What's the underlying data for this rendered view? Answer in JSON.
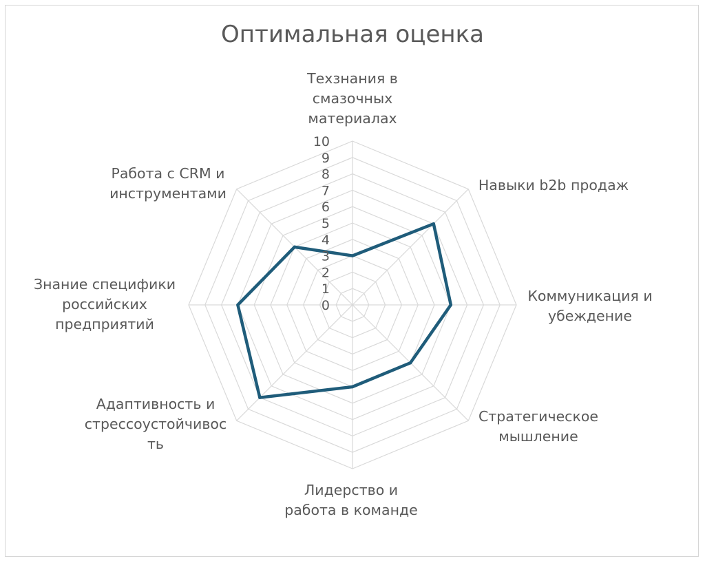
{
  "chart_data": {
    "type": "radar",
    "title": "Оптимальная оценка",
    "categories": [
      "Техзнания в смазочных материалах",
      "Навыки b2b продаж",
      "Коммуникация и убеждение",
      "Стратегическое мышление",
      "Лидерство и работа в команде",
      "Адаптивность и стрессоустойчивость",
      "Знание специфики российских предприятий",
      "Работа с CRM и инструментами"
    ],
    "category_label_lines": [
      [
        "Техзнания в",
        "смазочных",
        "материалах"
      ],
      [
        "Навыки b2b продаж"
      ],
      [
        "Коммуникация и",
        "убеждение"
      ],
      [
        "Стратегическое",
        "мышление"
      ],
      [
        "Лидерство и",
        "работа в команде"
      ],
      [
        "Адаптивность и",
        "стрессоустойчивос",
        "ть"
      ],
      [
        "Знание специфики",
        "российских",
        "предприятий"
      ],
      [
        "Работа с CRM и",
        "инструментами"
      ]
    ],
    "series": [
      {
        "values": [
          3,
          7,
          6,
          5,
          5,
          8,
          7,
          5
        ]
      }
    ],
    "rlim": [
      0,
      10
    ],
    "ticks": [
      "0",
      "1",
      "2",
      "3",
      "4",
      "5",
      "6",
      "7",
      "8",
      "9",
      "10"
    ],
    "grid": true,
    "legend": "none",
    "colors": {
      "series": "#1f5c7a",
      "grid": "#d9d9d9",
      "text": "#595959"
    }
  }
}
